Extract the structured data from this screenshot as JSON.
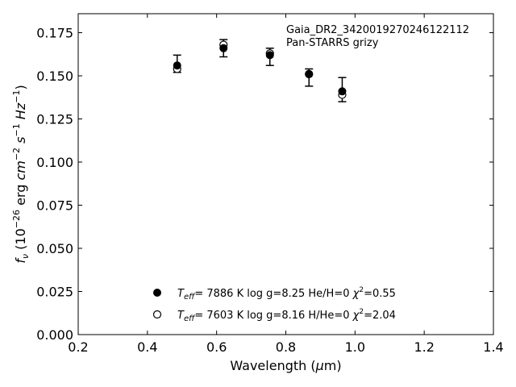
{
  "chart_data": {
    "type": "scatter",
    "xlabel": "Wavelength (μm)",
    "ylabel": "f_ν (10^-26 erg cm^-2 s^-1 Hz^-1)",
    "xlim": [
      0.2,
      1.4
    ],
    "ylim": [
      0.0,
      0.186
    ],
    "xticks": [
      0.2,
      0.4,
      0.6,
      0.8,
      1.0,
      1.2,
      1.4
    ],
    "xtick_labels": [
      "0.2",
      "0.4",
      "0.6",
      "0.8",
      "1.0",
      "1.2",
      "1.4"
    ],
    "yticks": [
      0.0,
      0.025,
      0.05,
      0.075,
      0.1,
      0.125,
      0.15,
      0.175
    ],
    "ytick_labels": [
      "0.000",
      "0.025",
      "0.050",
      "0.075",
      "0.100",
      "0.125",
      "0.150",
      "0.175"
    ],
    "grid": false,
    "annotation_lines": [
      "Gaia_DR2_3420019270246122112",
      "Pan-STARRS grizy"
    ],
    "observed": {
      "x": [
        0.486,
        0.62,
        0.754,
        0.867,
        0.963
      ],
      "y": [
        0.157,
        0.166,
        0.161,
        0.149,
        0.142
      ],
      "yerr": [
        0.005,
        0.005,
        0.005,
        0.005,
        0.007
      ]
    },
    "series": [
      {
        "marker": "filled-circle",
        "legend": "T_eff=  7886 K  log g=8.25  He/H=0  χ²=0.55",
        "x": [
          0.486,
          0.62,
          0.754,
          0.867,
          0.963
        ],
        "y": [
          0.156,
          0.166,
          0.162,
          0.151,
          0.141
        ]
      },
      {
        "marker": "open-circle",
        "legend": "T_eff=  7603 K  log g=8.16  H/He=0  χ²=2.04",
        "x": [
          0.486,
          0.62,
          0.754,
          0.867,
          0.963
        ],
        "y": [
          0.154,
          0.168,
          0.163,
          0.151,
          0.139
        ]
      }
    ],
    "legend_placement": "bottom-center",
    "colors": {
      "axis": "#000000",
      "marker": "#000000",
      "background": "#ffffff"
    }
  }
}
